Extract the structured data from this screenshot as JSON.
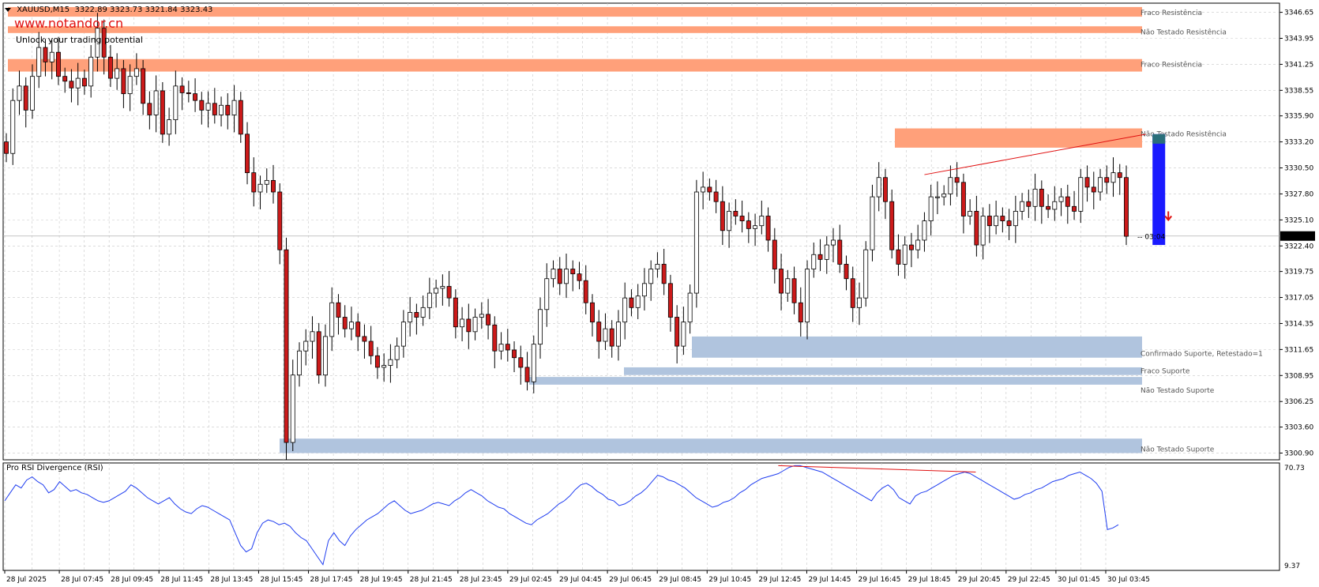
{
  "header": {
    "symbol": "XAUUSD,M15",
    "ohlc": "3322.89 3323.73 3321.84 3323.43"
  },
  "watermark": {
    "url": "www.notandor.cn",
    "tagline": "Unlock your trading potential"
  },
  "timer": "03:04",
  "colors": {
    "resistance_zone": "#ffa07a",
    "support_zone": "#b0c4de",
    "bull_body": "#ffffff",
    "bear_body": "#cc1a1a",
    "rsi_line": "#1f3df0",
    "divergence_line": "#e01010",
    "signal_box": "#1a1aff",
    "signal_box_top": "#2a6f7a",
    "grid": "#c8c8c8"
  },
  "chart_data": {
    "type": "candlestick",
    "symbol": "XAUUSD",
    "timeframe": "M15",
    "current_price": 3323.43,
    "price_range": [
      3300.2,
      3347.6
    ],
    "price_ticks": [
      "3346.65",
      "3343.95",
      "3341.25",
      "3338.55",
      "3335.90",
      "3333.20",
      "3330.50",
      "3327.80",
      "3325.10",
      "3322.40",
      "3319.75",
      "3317.05",
      "3314.35",
      "3311.65",
      "3308.95",
      "3306.25",
      "3303.60",
      "3300.90"
    ],
    "time_ticks": [
      "28 Jul 2025",
      "28 Jul 07:45",
      "28 Jul 09:45",
      "28 Jul 11:45",
      "28 Jul 13:45",
      "28 Jul 15:45",
      "28 Jul 17:45",
      "28 Jul 19:45",
      "28 Jul 21:45",
      "28 Jul 23:45",
      "29 Jul 02:45",
      "29 Jul 04:45",
      "29 Jul 06:45",
      "29 Jul 08:45",
      "29 Jul 10:45",
      "29 Jul 12:45",
      "29 Jul 14:45",
      "29 Jul 16:45",
      "29 Jul 18:45",
      "29 Jul 20:45",
      "29 Jul 22:45",
      "30 Jul 01:45",
      "30 Jul 03:45"
    ],
    "closes": [
      3332.0,
      3337.5,
      3339.0,
      3336.5,
      3340.0,
      3343.0,
      3341.5,
      3342.5,
      3340.0,
      3339.5,
      3338.8,
      3339.8,
      3339.0,
      3342.0,
      3345.0,
      3342.0,
      3339.8,
      3340.8,
      3338.2,
      3340.0,
      3340.8,
      3337.2,
      3336.0,
      3338.5,
      3334.0,
      3335.5,
      3339.0,
      3338.3,
      3338.2,
      3337.5,
      3336.5,
      3337.2,
      3336.0,
      3337.0,
      3336.0,
      3337.5,
      3334.0,
      3330.0,
      3328.0,
      3328.8,
      3329.2,
      3328.0,
      3322.0,
      3302.0,
      3309.0,
      3311.5,
      3312.5,
      3313.5,
      3309.0,
      3313.0,
      3316.5,
      3315.0,
      3313.8,
      3314.5,
      3313.0,
      3312.5,
      3311.0,
      3309.8,
      3310.0,
      3310.6,
      3312.0,
      3314.5,
      3315.5,
      3315.0,
      3316.0,
      3317.5,
      3318.0,
      3318.2,
      3317.0,
      3314.0,
      3314.8,
      3313.5,
      3315.0,
      3315.3,
      3314.2,
      3311.5,
      3312.2,
      3311.6,
      3310.8,
      3309.8,
      3308.3,
      3312.2,
      3315.8,
      3319.0,
      3320.0,
      3318.5,
      3320.0,
      3319.5,
      3318.8,
      3316.5,
      3314.5,
      3312.5,
      3313.8,
      3312.0,
      3314.5,
      3317.0,
      3316.0,
      3317.2,
      3318.5,
      3320.0,
      3320.5,
      3318.5,
      3315.0,
      3312.0,
      3314.5,
      3317.5,
      3328.0,
      3328.5,
      3328.0,
      3327.0,
      3324.0,
      3326.0,
      3325.5,
      3325.0,
      3324.2,
      3324.5,
      3325.5,
      3323.0,
      3320.0,
      3317.5,
      3319.0,
      3316.5,
      3314.5,
      3320.0,
      3321.5,
      3321.0,
      3322.5,
      3323.0,
      3320.5,
      3319.0,
      3316.0,
      3317.0,
      3322.0,
      3327.5,
      3329.5,
      3327.0,
      3322.0,
      3320.5,
      3322.5,
      3322.0,
      3323.0,
      3325.0,
      3327.5,
      3327.5,
      3327.8,
      3329.5,
      3329.0,
      3325.5,
      3326.0,
      3322.5,
      3325.5,
      3324.5,
      3325.5,
      3325.0,
      3324.5,
      3326.0,
      3327.0,
      3326.5,
      3328.3,
      3326.5,
      3326.2,
      3327.0,
      3327.5,
      3326.5,
      3326.0,
      3329.5,
      3328.5,
      3328.0,
      3329.5,
      3329.0,
      3330.0,
      3329.5,
      3323.4
    ],
    "resistance_zones": [
      {
        "top": 3347.2,
        "bottom": 3346.2,
        "label": "Fraco Resistência"
      },
      {
        "top": 3345.2,
        "bottom": 3344.5,
        "label": "Não Testado Resistência"
      },
      {
        "top": 3341.8,
        "bottom": 3340.5,
        "label": "Fraco Resistência"
      },
      {
        "top": 3334.6,
        "bottom": 3332.6,
        "label": "Não Testado Resistência"
      }
    ],
    "support_zones": [
      {
        "top": 3313.0,
        "bottom": 3310.8,
        "label": "Confirmado Suporte, Retestado=1"
      },
      {
        "top": 3309.8,
        "bottom": 3309.0,
        "label": "Fraco Suporte"
      },
      {
        "top": 3308.8,
        "bottom": 3308.0,
        "label": "Não Testado Suporte"
      },
      {
        "top": 3302.4,
        "bottom": 3300.9,
        "label": "Não Testado Suporte"
      }
    ],
    "price_divergence": {
      "from": {
        "index": 141,
        "price": 3329.8
      },
      "to": {
        "index": 175,
        "price": 3334.0
      }
    },
    "signal": {
      "index": 177,
      "top": 3334.0,
      "bottom": 3322.5,
      "arrow": "down"
    },
    "rsi": {
      "name": "Pro RSI Divergence (RSI)",
      "range": [
        9.37,
        70.73
      ],
      "ticks": [
        "70.73",
        "9.37"
      ],
      "values": [
        50,
        55,
        60,
        58,
        63,
        65,
        62,
        60,
        55,
        57,
        62,
        59,
        56,
        57,
        55,
        54,
        52,
        50,
        49,
        50,
        52,
        54,
        56,
        60,
        58,
        55,
        52,
        50,
        48,
        50,
        52,
        48,
        45,
        43,
        42,
        45,
        47,
        46,
        44,
        42,
        40,
        38,
        30,
        22,
        18,
        20,
        30,
        36,
        38,
        37,
        35,
        36,
        34,
        30,
        27,
        25,
        20,
        15,
        10,
        25,
        30,
        25,
        22,
        28,
        32,
        35,
        38,
        40,
        42,
        45,
        48,
        50,
        47,
        44,
        42,
        43,
        44,
        46,
        48,
        49,
        48,
        47,
        50,
        52,
        55,
        57,
        55,
        53,
        50,
        48,
        46,
        45,
        42,
        40,
        38,
        36,
        35,
        38,
        40,
        42,
        45,
        48,
        50,
        53,
        57,
        60,
        61,
        59,
        56,
        54,
        51,
        50,
        47,
        48,
        50,
        53,
        55,
        58,
        62,
        66,
        65,
        63,
        62,
        60,
        58,
        55,
        52,
        50,
        48,
        46,
        47,
        49,
        50,
        52,
        55,
        57,
        60,
        62,
        64,
        65,
        66,
        67,
        69,
        71,
        72,
        72,
        71,
        70,
        69,
        68,
        66,
        64,
        62,
        60,
        58,
        56,
        54,
        52,
        50,
        55,
        58,
        60,
        57,
        52,
        50,
        48,
        53,
        55,
        56,
        58,
        60,
        62,
        64,
        66,
        67,
        68,
        67,
        65,
        63,
        61,
        59,
        57,
        55,
        53,
        51,
        52,
        54,
        55,
        57,
        58,
        60,
        62,
        63,
        64,
        66,
        67,
        68,
        66,
        64,
        61,
        56,
        32,
        33,
        35
      ]
    }
  }
}
